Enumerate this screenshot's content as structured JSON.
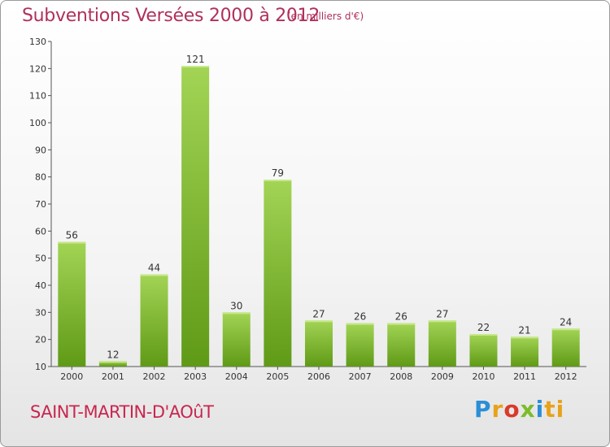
{
  "chart_data": {
    "type": "bar",
    "title": "Subventions Versées 2000 à 2012",
    "subtitle": "(en milliers d'€)",
    "categories": [
      "2000",
      "2001",
      "2002",
      "2003",
      "2004",
      "2005",
      "2006",
      "2007",
      "2008",
      "2009",
      "2010",
      "2011",
      "2012"
    ],
    "values": [
      56,
      12,
      44,
      121,
      30,
      79,
      27,
      26,
      26,
      27,
      22,
      21,
      24
    ],
    "ylim": [
      10,
      130
    ],
    "yticks": [
      10,
      20,
      30,
      40,
      50,
      60,
      70,
      80,
      90,
      100,
      110,
      120,
      130
    ],
    "grid": false,
    "bar_color": "#7cb82f"
  },
  "footer": {
    "place": "SAINT-MARTIN-D'AOûT",
    "logo": [
      "P",
      "r",
      "o",
      "x",
      "i",
      "ti"
    ]
  }
}
